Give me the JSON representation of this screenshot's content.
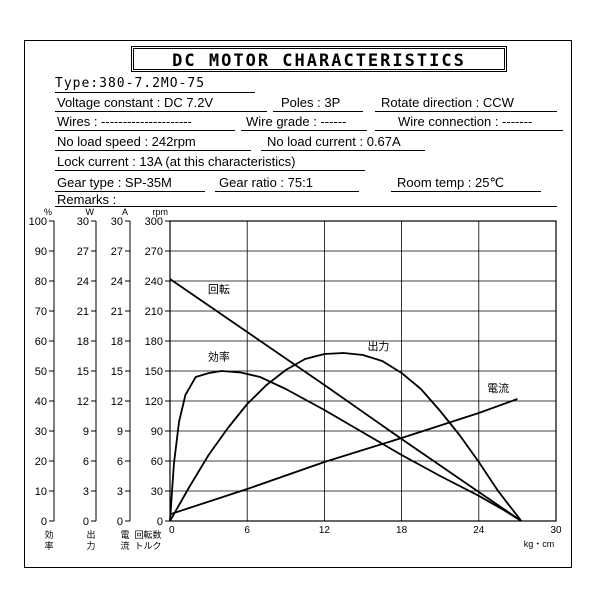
{
  "title": "DC MOTOR CHARACTERISTICS",
  "specs": {
    "type": "Type:380-7.2MO-75",
    "voltage": "Voltage constant : DC 7.2V",
    "poles": "Poles : 3P",
    "rotate": "Rotate direction : CCW",
    "wires": "Wires : ---------------------",
    "wire_grade": "Wire grade : ------",
    "wire_connection": "Wire connection : -------",
    "no_load_speed": "No load speed : 242rpm",
    "no_load_current": "No load current : 0.67A",
    "lock_current": "Lock current : 13A (at this characteristics)",
    "gear_type": "Gear type : SP-35M",
    "gear_ratio": "Gear ratio :  75:1",
    "room_temp": "Room temp : 25℃",
    "remarks": "Remarks :"
  },
  "chart_data": {
    "type": "line",
    "x_unit": "kg・cm",
    "xlim": [
      0,
      30
    ],
    "x_ticks": [
      0,
      6,
      12,
      18,
      24,
      30
    ],
    "grid": true,
    "axes": [
      {
        "unit": "%",
        "ticks": [
          0,
          10,
          20,
          30,
          40,
          50,
          60,
          70,
          80,
          90,
          100
        ],
        "label": [
          "効",
          "率"
        ]
      },
      {
        "unit": "W",
        "ticks": [
          0,
          3,
          6,
          9,
          12,
          15,
          18,
          21,
          24,
          27,
          30
        ],
        "label": [
          "出",
          "力"
        ]
      },
      {
        "unit": "A",
        "ticks": [
          0,
          3,
          6,
          9,
          12,
          15,
          18,
          21,
          24,
          27,
          30
        ],
        "label": [
          "電",
          "流"
        ]
      },
      {
        "unit": "rpm",
        "ticks": [
          0,
          30,
          60,
          90,
          120,
          150,
          180,
          210,
          240,
          270,
          300
        ],
        "label": [
          "回転数",
          "トルク"
        ]
      }
    ],
    "series": [
      {
        "name": "回転",
        "axis": "rpm",
        "ymax": 300,
        "points": [
          [
            0,
            242
          ],
          [
            6,
            189
          ],
          [
            12,
            136
          ],
          [
            18,
            82
          ],
          [
            24,
            29
          ],
          [
            27.3,
            0
          ]
        ],
        "label_at": [
          3.8,
          228
        ]
      },
      {
        "name": "効率",
        "axis": "%",
        "ymax": 100,
        "points": [
          [
            0,
            0
          ],
          [
            0.3,
            19
          ],
          [
            0.7,
            33
          ],
          [
            1.2,
            42
          ],
          [
            2,
            48
          ],
          [
            3,
            49.3
          ],
          [
            4,
            50
          ],
          [
            5.5,
            49.5
          ],
          [
            7,
            48
          ],
          [
            9,
            44
          ],
          [
            12,
            37
          ],
          [
            15,
            29.5
          ],
          [
            18,
            22
          ],
          [
            21,
            15
          ],
          [
            24,
            8.4
          ],
          [
            26,
            3.5
          ],
          [
            27.3,
            0
          ]
        ],
        "label_at": [
          3.8,
          53.5
        ]
      },
      {
        "name": "出力",
        "axis": "W",
        "ymax": 30,
        "points": [
          [
            0,
            0
          ],
          [
            1.5,
            3.4
          ],
          [
            3,
            6.6
          ],
          [
            4.5,
            9.3
          ],
          [
            6,
            11.7
          ],
          [
            7.5,
            13.6
          ],
          [
            9,
            15.1
          ],
          [
            10.5,
            16.2
          ],
          [
            12,
            16.7
          ],
          [
            13.5,
            16.8
          ],
          [
            15,
            16.6
          ],
          [
            16.5,
            16.0
          ],
          [
            18,
            14.8
          ],
          [
            19.5,
            13.2
          ],
          [
            21,
            11.0
          ],
          [
            22.5,
            8.6
          ],
          [
            24,
            5.9
          ],
          [
            25.5,
            3.0
          ],
          [
            27.3,
            0
          ]
        ],
        "label_at": [
          16.2,
          17.1
        ]
      },
      {
        "name": "電流",
        "axis": "A",
        "ymax": 30,
        "points": [
          [
            0,
            0.67
          ],
          [
            6,
            3.2
          ],
          [
            12,
            5.9
          ],
          [
            18,
            8.3
          ],
          [
            24,
            10.8
          ],
          [
            27,
            12.2
          ]
        ],
        "label_at": [
          25.5,
          12.9
        ]
      }
    ]
  }
}
